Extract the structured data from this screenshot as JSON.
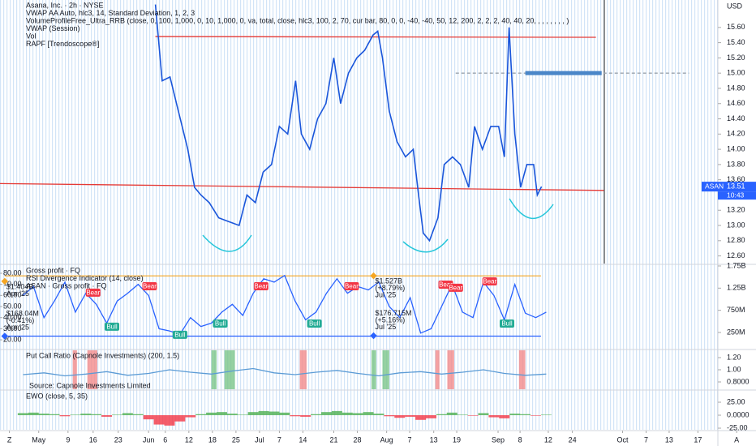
{
  "chart_data": [
    {
      "type": "line",
      "legend": [
        "Asana, Inc. · 2h · NYSE",
        "VWAP AA Auto, hlc3, 14, Standard Deviation, 1, 2, 3",
        "VolumeProfileFree_Ultra_RRB (close, 0, 100, 1,000, 0, 10, 1,000, 0, va, total, close, hlc3, 100, 2, 70, cur bar, 80, 0, 0, -40, -40, 50, 12, 200, 2, 2, 2, 40, 40, 20, , , , , , , , )",
        "VWAP (Session)",
        "Vol",
        "RAPF [Trendoscope®]"
      ],
      "unit": "USD",
      "symbol": "ASAN",
      "last_price": 13.51,
      "countdown": "10:43",
      "xlim": [
        -7.4,
        137.1
      ],
      "xticks": [
        {
          "value": -5.6,
          "label": "Z"
        },
        {
          "value": 0,
          "label": "May"
        },
        {
          "value": 5.6,
          "label": "9"
        },
        {
          "value": 10.4,
          "label": "16"
        },
        {
          "value": 15.2,
          "label": "23"
        },
        {
          "value": 21,
          "label": "Jun"
        },
        {
          "value": 24.2,
          "label": "6"
        },
        {
          "value": 28.7,
          "label": "12"
        },
        {
          "value": 33.2,
          "label": "18"
        },
        {
          "value": 37.7,
          "label": "25"
        },
        {
          "value": 42.2,
          "label": "Jul"
        },
        {
          "value": 46,
          "label": "7"
        },
        {
          "value": 50.5,
          "label": "14"
        },
        {
          "value": 56.4,
          "label": "21"
        },
        {
          "value": 60.9,
          "label": "28"
        },
        {
          "value": 66.5,
          "label": "Aug"
        },
        {
          "value": 70.9,
          "label": "7"
        },
        {
          "value": 75.5,
          "label": "13"
        },
        {
          "value": 79.9,
          "label": "19"
        },
        {
          "value": 87.8,
          "label": "Sep"
        },
        {
          "value": 92,
          "label": "8"
        },
        {
          "value": 97.4,
          "label": "12"
        },
        {
          "value": 102,
          "label": "24"
        },
        {
          "value": 111.6,
          "label": "Oct"
        },
        {
          "value": 116.1,
          "label": "7"
        },
        {
          "value": 120.5,
          "label": "13"
        },
        {
          "value": 126,
          "label": "17"
        },
        {
          "value": 133.4,
          "label": "A"
        }
      ],
      "ylim": [
        12.5,
        15.96
      ],
      "yticks": [
        {
          "value": 15.6,
          "label": "15.60"
        },
        {
          "value": 15.4,
          "label": "15.40"
        },
        {
          "value": 15.2,
          "label": "15.20"
        },
        {
          "value": 15.0,
          "label": "15.00"
        },
        {
          "value": 14.8,
          "label": "14.80"
        },
        {
          "value": 14.6,
          "label": "14.60"
        },
        {
          "value": 14.4,
          "label": "14.40"
        },
        {
          "value": 14.2,
          "label": "14.20"
        },
        {
          "value": 14.0,
          "label": "14.00"
        },
        {
          "value": 13.8,
          "label": "13.80"
        },
        {
          "value": 13.6,
          "label": "13.60"
        },
        {
          "value": 13.4,
          "label": "13.40"
        },
        {
          "value": 13.2,
          "label": "13.20"
        },
        {
          "value": 13.0,
          "label": "13.00"
        },
        {
          "value": 12.8,
          "label": "12.80"
        },
        {
          "value": 12.6,
          "label": "12.60"
        }
      ],
      "x": [
        22.3,
        23.6,
        25.1,
        26.7,
        28.5,
        29.8,
        31,
        32.6,
        34.4,
        36.3,
        38.3,
        39.8,
        41.4,
        42.9,
        44.5,
        46,
        47.6,
        49.1,
        50.2,
        51.8,
        53.3,
        54.9,
        56.4,
        57.7,
        59.2,
        60.8,
        62.3,
        63.9,
        64.8,
        65.7,
        67,
        68.5,
        70.1,
        71.6,
        72.6,
        73.5,
        74.7,
        76.3,
        77.5,
        79.1,
        80.6,
        82.2,
        83.3,
        84.8,
        86.4,
        87.9,
        89,
        89.9,
        91,
        92.1,
        93.3,
        94.6,
        95.3,
        96.1
      ],
      "series": [
        {
          "color": "#1a56db",
          "values": [
            15.9,
            14.9,
            14.95,
            14.5,
            14.0,
            13.5,
            13.4,
            13.3,
            13.1,
            13.05,
            13.0,
            13.4,
            13.3,
            13.7,
            13.8,
            14.3,
            14.2,
            14.9,
            14.2,
            14.0,
            14.4,
            14.6,
            15.2,
            14.6,
            15.0,
            15.2,
            15.3,
            15.5,
            15.55,
            15.2,
            14.5,
            14.1,
            13.9,
            14.0,
            13.4,
            12.9,
            12.8,
            13.1,
            13.8,
            13.9,
            13.8,
            13.5,
            14.3,
            14.0,
            14.3,
            14.3,
            13.9,
            15.6,
            14.2,
            13.5,
            13.8,
            13.8,
            13.4,
            13.51
          ]
        }
      ],
      "levels": [
        {
          "x": [
            22.3,
            106.5
          ],
          "values": [
            15.48,
            15.47
          ],
          "color": "#e53935"
        },
        {
          "x": [
            -7.4,
            108
          ],
          "values": [
            13.55,
            13.46
          ],
          "color": "#e53935"
        },
        {
          "x": [
            79.7,
            124.3
          ],
          "values": [
            15.0,
            15.0
          ],
          "color": "#9aa3ad"
        },
        {
          "x": [
            93,
            107.6
          ],
          "values": [
            15.0,
            15.0
          ],
          "color": "#4a86c8"
        }
      ]
    },
    {
      "type": "line",
      "legend": [
        "Gross profit · FQ",
        "RSI Divergence Indicator (14, close)",
        "ASAN · Gross profit · FQ"
      ],
      "ylim": [
        12,
        87.3
      ],
      "yticks": [
        {
          "value": 80,
          "label": "80.00"
        },
        {
          "value": 70,
          "label": "70.00"
        },
        {
          "value": 60,
          "label": "60.00"
        },
        {
          "value": 50,
          "label": "50.00"
        },
        {
          "value": 40,
          "label": "40.00"
        },
        {
          "value": 30,
          "label": "30.00"
        },
        {
          "value": 20,
          "label": "20.00"
        }
      ],
      "y2lim": [
        -116000000,
        1768000000
      ],
      "y2ticks": [
        {
          "value": 1750000000,
          "label": "1.75B"
        },
        {
          "value": 1250000000,
          "label": "1.25B"
        },
        {
          "value": 750000000,
          "label": "750M"
        },
        {
          "value": 250000000,
          "label": "250M"
        }
      ],
      "x": [
        -3,
        -1,
        1,
        3,
        5,
        7,
        9,
        11,
        13,
        15,
        17,
        19,
        21,
        23,
        25,
        27,
        29,
        31,
        33,
        35,
        37,
        39,
        41,
        43,
        45,
        47,
        49,
        51,
        53,
        55,
        57,
        59,
        61,
        63,
        65,
        67,
        69,
        71,
        73,
        75,
        77,
        79,
        81,
        83,
        85,
        87,
        89,
        91,
        93,
        95,
        97
      ],
      "series": [
        {
          "color": "#2962ff",
          "values": [
            60,
            68,
            40,
            55,
            72,
            45,
            62,
            52,
            35,
            55,
            62,
            70,
            60,
            30,
            28,
            25,
            40,
            32,
            35,
            45,
            52,
            42,
            62,
            75,
            72,
            78,
            55,
            38,
            45,
            62,
            75,
            62,
            68,
            65,
            72,
            50,
            40,
            58,
            26,
            30,
            50,
            70,
            45,
            40,
            72,
            60,
            38,
            70,
            44,
            40,
            45
          ]
        }
      ],
      "levels": [
        {
          "x": [
            -6.5,
            96
          ],
          "value": 1527000000,
          "color": "#f5a623"
        },
        {
          "x": [
            -6.5,
            96
          ],
          "value": 168040000,
          "color": "#2962ff"
        }
      ],
      "gross_profit": [
        {
          "x": -6.5,
          "value": 1404000000,
          "label": "$1.404B",
          "note": "Apr '25"
        },
        {
          "x": -6.5,
          "value": 168040000,
          "label": "$168.04M",
          "change": "(-0.41%)",
          "note": "Apr '25"
        },
        {
          "x": 64,
          "value": 1527000000,
          "label": "$1.527B",
          "change": "(+8.79%)",
          "note": "Jul '25"
        },
        {
          "x": 64,
          "value": 176715000,
          "label": "$176.715M",
          "change": "(+5.16%)",
          "note": "Jul '25"
        }
      ],
      "signals": [
        {
          "x": 10.4,
          "value": 62.5,
          "label": "Bear"
        },
        {
          "x": 21.2,
          "value": 68.3,
          "label": "Bear"
        },
        {
          "x": 42.5,
          "value": 68.3,
          "label": "Bear"
        },
        {
          "x": 59.8,
          "value": 68.3,
          "label": "Bear"
        },
        {
          "x": 77.8,
          "value": 69.8,
          "label": "Bear"
        },
        {
          "x": 79.7,
          "value": 66.9,
          "label": "Bear"
        },
        {
          "x": 86.2,
          "value": 72.7,
          "label": "Bear"
        },
        {
          "x": 14,
          "value": 31.8,
          "label": "Bull"
        },
        {
          "x": 27,
          "value": 24.5,
          "label": "Bull"
        },
        {
          "x": 34.7,
          "value": 34.7,
          "label": "Bull"
        },
        {
          "x": 52.7,
          "value": 34.7,
          "label": "Bull"
        },
        {
          "x": 89.5,
          "value": 34.7,
          "label": "Bull"
        }
      ]
    },
    {
      "type": "line",
      "legend": [
        "Put Call Ratio (Capnole Investments) (200, 1.5)"
      ],
      "source": "Source: Capnole Investments Limited",
      "ylim": [
        0.68,
        1.32
      ],
      "yticks": [
        {
          "value": 1.2,
          "label": "1.20"
        },
        {
          "value": 1,
          "label": "1.00"
        },
        {
          "value": 0.8,
          "label": "0.8000"
        }
      ],
      "x": [
        -3,
        1,
        5,
        9,
        13,
        17,
        21,
        25,
        29,
        33,
        37,
        41,
        45,
        49,
        53,
        57,
        61,
        65,
        69,
        73,
        77,
        81,
        85,
        89,
        93,
        97
      ],
      "series": [
        {
          "color": "#5b9bd5",
          "values": [
            0.92,
            0.95,
            0.9,
            0.93,
            0.97,
            0.91,
            0.94,
            1.0,
            0.96,
            0.93,
            0.98,
            1.02,
            0.95,
            0.92,
            0.96,
            0.99,
            0.94,
            0.9,
            0.95,
            0.97,
            0.93,
            0.96,
            1.0,
            0.94,
            0.91,
            0.93
          ]
        }
      ],
      "highlights": [
        {
          "x": [
            6.5,
            7.3
          ],
          "color": "#f28b8b"
        },
        {
          "x": [
            9.3,
            11.2
          ],
          "color": "#f28b8b"
        },
        {
          "x": [
            33,
            34
          ],
          "color": "#7cc68a"
        },
        {
          "x": [
            35.5,
            37.5
          ],
          "color": "#7cc68a"
        },
        {
          "x": [
            49.9,
            51.2
          ],
          "color": "#f28b8b"
        },
        {
          "x": [
            63.6,
            64.5
          ],
          "color": "#7cc68a"
        },
        {
          "x": [
            65.7,
            67
          ],
          "color": "#7cc68a"
        },
        {
          "x": [
            75.8,
            76.6
          ],
          "color": "#f28b8b"
        },
        {
          "x": [
            78.1,
            79.4
          ],
          "color": "#f28b8b"
        },
        {
          "x": [
            91.8,
            93
          ],
          "color": "#f28b8b"
        }
      ]
    },
    {
      "type": "bar",
      "legend": [
        "EWO (close, 5, 35)"
      ],
      "ylim": [
        -28.1,
        46.9
      ],
      "yticks": [
        {
          "value": 25,
          "label": "25.00"
        },
        {
          "value": 0,
          "label": "0.0000"
        },
        {
          "value": -25,
          "label": "-25.00"
        }
      ],
      "up_color": "#4caf50",
      "down_color": "#f23645",
      "x": [
        -3,
        -1,
        1,
        3,
        5,
        7,
        9,
        11,
        13,
        15,
        17,
        19,
        21,
        23,
        25,
        27,
        29,
        31,
        33,
        35,
        37,
        39,
        41,
        43,
        45,
        47,
        49,
        51,
        53,
        55,
        57,
        59,
        61,
        63,
        65,
        67,
        69,
        71,
        73,
        75,
        77,
        79,
        81,
        83,
        85,
        87,
        89,
        91,
        93,
        95,
        97
      ],
      "values": [
        4,
        5,
        3,
        2,
        -2,
        1,
        3,
        2,
        -3,
        1,
        4,
        2,
        -8,
        -18,
        -20,
        -12,
        -4,
        2,
        5,
        6,
        3,
        1,
        6,
        8,
        7,
        5,
        -2,
        -3,
        2,
        6,
        8,
        5,
        4,
        6,
        3,
        -2,
        -5,
        -3,
        -9,
        -6,
        2,
        5,
        1,
        -1,
        4,
        -4,
        -6,
        3,
        2,
        -1,
        1
      ]
    }
  ]
}
